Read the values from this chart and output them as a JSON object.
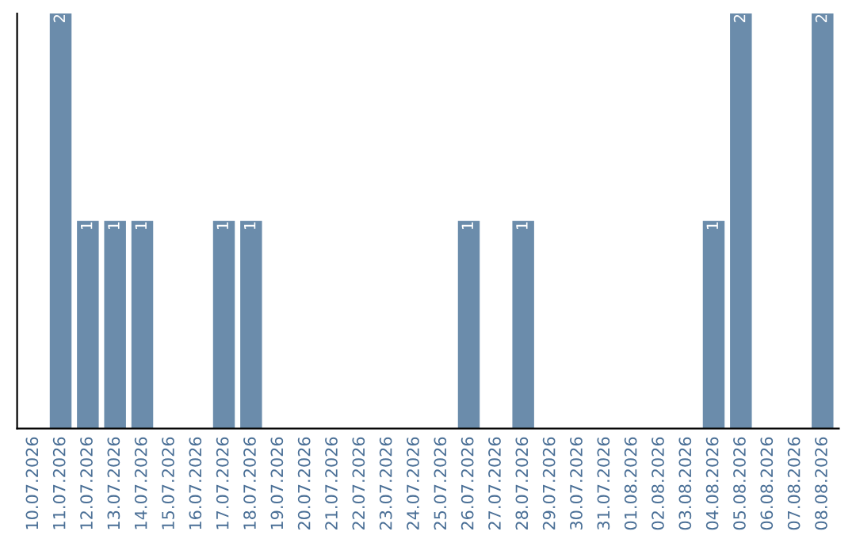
{
  "chart_data": {
    "type": "bar",
    "categories": [
      "10.07.2026",
      "11.07.2026",
      "12.07.2026",
      "13.07.2026",
      "14.07.2026",
      "15.07.2026",
      "16.07.2026",
      "17.07.2026",
      "18.07.2026",
      "19.07.2026",
      "20.07.2026",
      "21.07.2026",
      "22.07.2026",
      "23.07.2026",
      "24.07.2026",
      "25.07.2026",
      "26.07.2026",
      "27.07.2026",
      "28.07.2026",
      "29.07.2026",
      "30.07.2026",
      "31.07.2026",
      "01.08.2026",
      "02.08.2026",
      "03.08.2026",
      "04.08.2026",
      "05.08.2026",
      "06.08.2026",
      "07.08.2026",
      "08.08.2026"
    ],
    "values": [
      0,
      2,
      1,
      1,
      1,
      0,
      0,
      1,
      1,
      0,
      0,
      0,
      0,
      0,
      0,
      0,
      1,
      0,
      1,
      0,
      0,
      0,
      0,
      0,
      0,
      1,
      2,
      0,
      0,
      2
    ],
    "value_labels": [
      null,
      "2",
      "1",
      "1",
      "1",
      null,
      null,
      "1",
      "1",
      null,
      null,
      null,
      null,
      null,
      null,
      null,
      "1",
      null,
      "1",
      null,
      null,
      null,
      null,
      null,
      null,
      "1",
      "2",
      null,
      null,
      "2"
    ],
    "color": "#6b8cab",
    "grid": false,
    "legend": false
  }
}
